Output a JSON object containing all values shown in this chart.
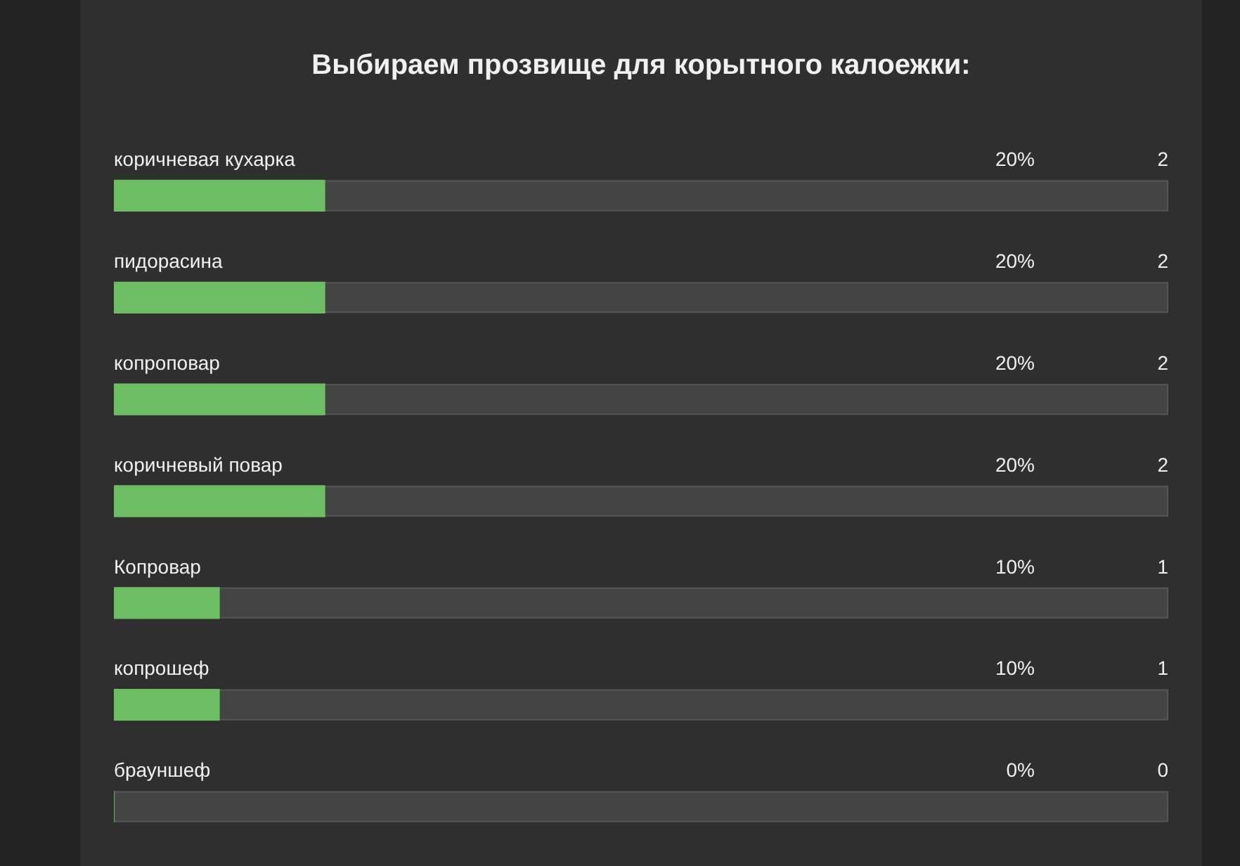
{
  "chart_data": {
    "type": "bar",
    "orientation": "horizontal",
    "title": "Выбираем прозвище для корытного калоежки:",
    "categories": [
      "коричневая кухарка",
      "пидорасина",
      "копроповар",
      "коричневый повар",
      "Копровар",
      "копрошеф",
      "брауншеф"
    ],
    "values": [
      20,
      20,
      20,
      20,
      10,
      10,
      0
    ],
    "value_labels": [
      "20%",
      "20%",
      "20%",
      "20%",
      "10%",
      "10%",
      "0%"
    ],
    "color": "#6dbd63",
    "xlim": [
      0,
      100
    ],
    "tick_labels": "y",
    "legend": false,
    "annotations": [
      "2",
      "2",
      "2",
      "2",
      "1",
      "1",
      "0"
    ]
  }
}
